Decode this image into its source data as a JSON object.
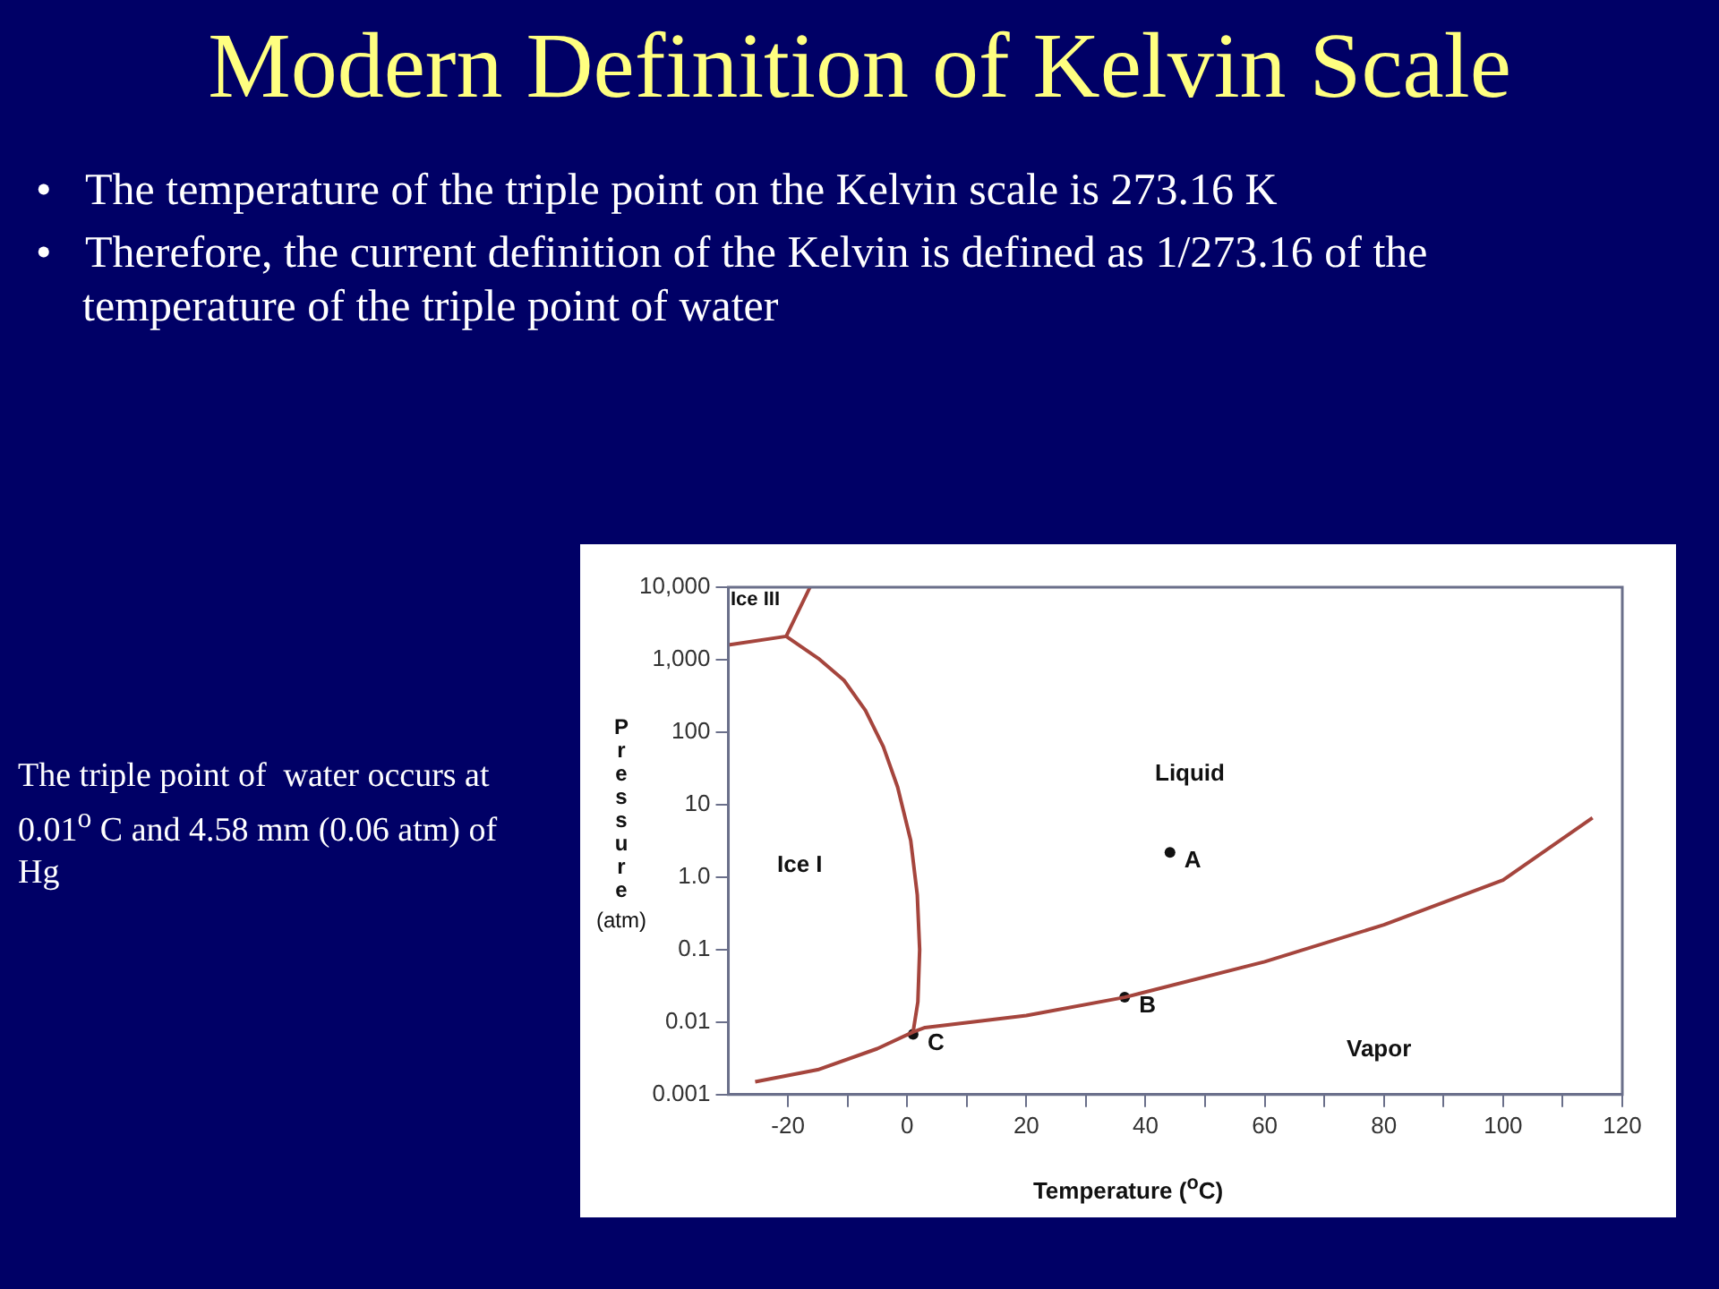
{
  "chart_data": {
    "type": "line",
    "title": "Modern Definition of Kelvin Scale",
    "xlabel": "Temperature ($^{o}$C)",
    "ylabel": "Pressure (atm)",
    "log": "y",
    "grid": false,
    "legend": false,
    "xlim": [
      -30,
      120
    ],
    "ylim": [
      0.001,
      10000
    ],
    "xticks": [
      -20,
      {
        "value": -10,
        "label": null
      },
      0,
      {
        "value": 10,
        "label": null
      },
      20,
      {
        "value": 30,
        "label": null
      },
      40,
      {
        "value": 50,
        "label": null
      },
      60,
      {
        "value": 70,
        "label": null
      },
      80,
      {
        "value": 90,
        "label": null
      },
      100,
      {
        "value": 110,
        "label": null
      },
      120
    ],
    "yticks": [
      0.001,
      0.01,
      0.1,
      {
        "value": 1,
        "label": "1.0"
      },
      10,
      100,
      {
        "value": 1000,
        "label": "1,000"
      },
      {
        "value": 10000,
        "label": "10,000"
      }
    ],
    "series": [
      {
        "color": "#a5453d",
        "x": [
          -25.5,
          -15,
          -5,
          1,
          3,
          20,
          36.5,
          60,
          80,
          100,
          115
        ],
        "values": [
          0.0015,
          0.0022,
          0.0043,
          0.0073,
          0.0084,
          0.0123,
          0.022,
          0.068,
          0.22,
          0.91,
          6.6
        ]
      },
      {
        "color": "#a5453d",
        "x": [
          1,
          1.8,
          2.1,
          1.7,
          0.6,
          -1.6,
          -4,
          -7,
          -10.6,
          -14.9,
          -20.3
        ],
        "values": [
          0.0073,
          0.019,
          0.1,
          0.57,
          3.2,
          17.5,
          63,
          200,
          520,
          1040,
          2100
        ]
      },
      {
        "color": "#a5453d",
        "x": [
          -30,
          -20.3,
          -16.3
        ],
        "values": [
          1600,
          2100,
          10000
        ]
      },
      {
        "type": "scatter",
        "name": "A",
        "color": "#111111",
        "x": [
          44.1
        ],
        "values": [
          2.2
        ]
      },
      {
        "type": "scatter",
        "name": "B",
        "color": "#111111",
        "x": [
          36.5
        ],
        "values": [
          0.022
        ]
      },
      {
        "type": "scatter",
        "name": "C",
        "color": "#111111",
        "x": [
          1
        ],
        "values": [
          0.0068
        ]
      }
    ],
    "annotations": [
      "• The temperature of the triple point on the Kelvin scale is 273.16 K",
      "• Therefore, the current definition of the Kelvin is defined as 1/273.16 of the temperature of the triple point of water",
      "The triple point of  water occurs at  0.01$^{o}$ C and 4.58 mm (0.06 atm) of Hg",
      "Ice III",
      "Liquid",
      "Ice I",
      "Vapor"
    ]
  }
}
